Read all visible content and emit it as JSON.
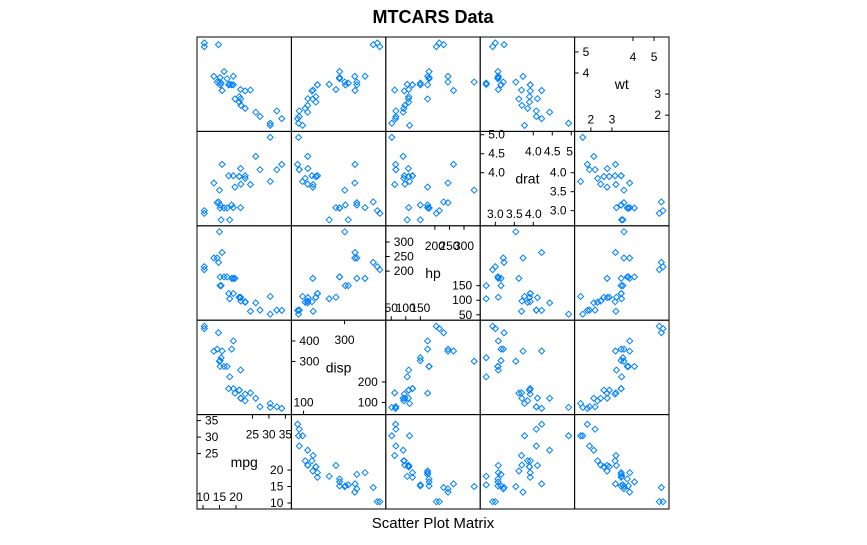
{
  "chart_data": {
    "type": "scatter",
    "title": "MTCARS Data",
    "xlabel": "Scatter Plot Matrix",
    "variables": [
      {
        "name": "mpg",
        "range": [
          10,
          35
        ],
        "ticks": [
          10,
          15,
          20,
          25,
          30,
          35
        ]
      },
      {
        "name": "disp",
        "range": [
          70,
          472
        ],
        "ticks": [
          100,
          200,
          300,
          400
        ]
      },
      {
        "name": "hp",
        "range": [
          52,
          335
        ],
        "ticks": [
          50,
          100,
          150,
          200,
          250,
          300
        ]
      },
      {
        "name": "drat",
        "range": [
          2.76,
          4.93
        ],
        "ticks": [
          3.0,
          3.5,
          4.0,
          4.5,
          5.0
        ]
      },
      {
        "name": "wt",
        "range": [
          1.513,
          5.424
        ],
        "ticks": [
          2,
          3,
          4,
          5
        ]
      }
    ],
    "diagonal_tick_labels": {
      "mpg": {
        "lower": [
          "10",
          "15",
          "20"
        ],
        "upper": [
          "25",
          "30",
          "35"
        ],
        "left": [
          "20",
          "15",
          "10"
        ],
        "top": [
          "35",
          "30",
          "25"
        ]
      },
      "disp": {
        "lower": [
          "100"
        ],
        "upper": [
          "300"
        ],
        "left": [
          "200",
          "100"
        ],
        "top": [
          "400",
          "300"
        ]
      },
      "hp": {
        "lower": [
          "50",
          "100",
          "150"
        ],
        "upper": [
          "200",
          "250",
          "300"
        ],
        "left": [
          "150",
          "100",
          "50"
        ],
        "top": [
          "300",
          "250",
          "200"
        ]
      },
      "drat": {
        "lower": [
          "3.0",
          "3.5",
          "4.0"
        ],
        "upper": [
          "4.0",
          "4.5",
          "5."
        ],
        "left": [
          "4.0",
          "3.5",
          "3.0"
        ],
        "top": [
          "5.0",
          "4.5",
          "4.0"
        ]
      },
      "wt": {
        "lower": [
          "2",
          "3"
        ],
        "upper": [
          "4",
          "5"
        ],
        "left": [
          "3",
          "2"
        ],
        "top": [
          "5",
          "4"
        ]
      }
    },
    "observations": {
      "mpg": [
        21.0,
        21.0,
        22.8,
        21.4,
        18.7,
        18.1,
        14.3,
        24.4,
        22.8,
        19.2,
        17.8,
        16.4,
        17.3,
        15.2,
        10.4,
        10.4,
        14.7,
        32.4,
        30.4,
        33.9,
        21.5,
        15.5,
        15.2,
        13.3,
        19.2,
        27.3,
        26.0,
        30.4,
        15.8,
        19.7,
        15.0,
        21.4
      ],
      "disp": [
        160,
        160,
        108,
        258,
        360,
        225,
        360,
        146.7,
        140.8,
        167.6,
        167.6,
        275.8,
        275.8,
        275.8,
        472,
        460,
        440,
        78.7,
        75.7,
        71.1,
        120.1,
        318,
        304,
        350,
        400,
        79,
        120.3,
        95.1,
        351,
        145,
        301,
        121
      ],
      "hp": [
        110,
        110,
        93,
        110,
        175,
        105,
        245,
        62,
        95,
        123,
        123,
        180,
        180,
        180,
        205,
        215,
        230,
        66,
        52,
        65,
        97,
        150,
        150,
        245,
        175,
        66,
        91,
        113,
        264,
        175,
        335,
        109
      ],
      "drat": [
        3.9,
        3.9,
        3.85,
        3.08,
        3.15,
        2.76,
        3.21,
        3.69,
        3.92,
        3.92,
        3.92,
        3.07,
        3.07,
        3.07,
        2.93,
        3.0,
        3.23,
        4.08,
        4.93,
        4.22,
        3.7,
        2.76,
        3.15,
        3.73,
        3.08,
        4.08,
        4.43,
        3.77,
        4.22,
        3.62,
        3.54,
        4.11
      ],
      "wt": [
        2.62,
        2.875,
        2.32,
        3.215,
        3.44,
        3.46,
        3.57,
        3.19,
        3.15,
        3.44,
        3.44,
        4.07,
        3.73,
        3.78,
        5.25,
        5.424,
        5.345,
        2.2,
        1.615,
        1.835,
        2.465,
        3.52,
        3.435,
        3.84,
        3.845,
        1.935,
        2.14,
        1.513,
        3.17,
        2.77,
        3.57,
        2.78
      ]
    },
    "colors": {
      "points": "#0080ff",
      "frame": "#000000",
      "background": "#ffffff"
    },
    "point_shape": "diamond",
    "grid": false,
    "legend": "none"
  }
}
